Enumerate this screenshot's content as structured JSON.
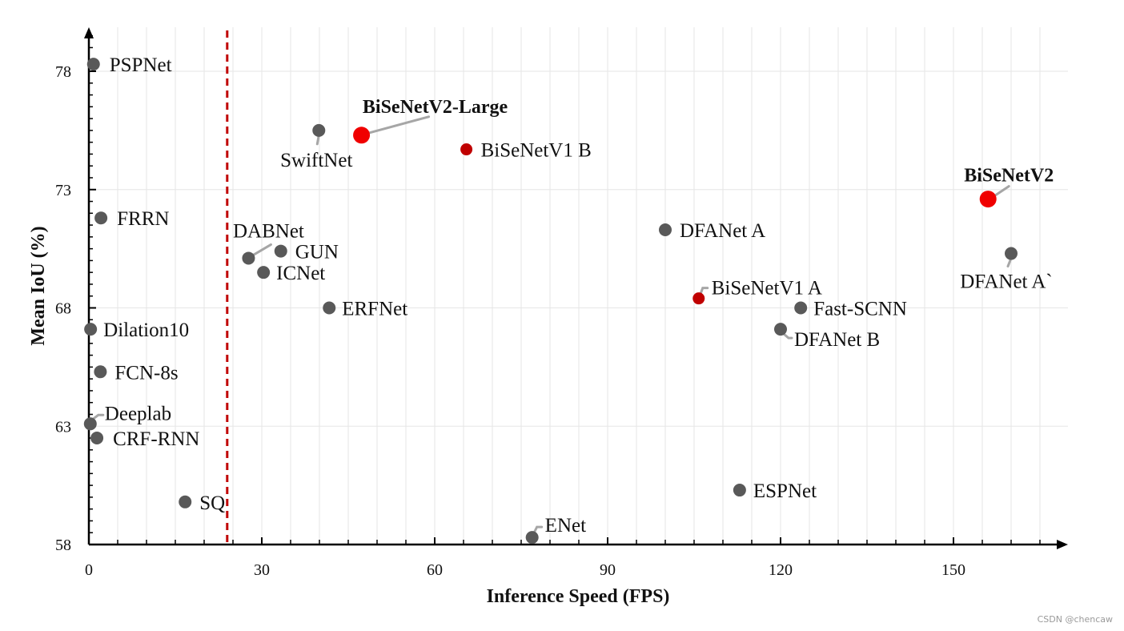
{
  "chart_data": {
    "type": "scatter",
    "title": "",
    "xlabel": "Inference Speed (FPS)",
    "ylabel": "Mean IoU (%)",
    "xlim": [
      0,
      170
    ],
    "ylim": [
      58,
      80
    ],
    "x_ticks": [
      0,
      30,
      60,
      90,
      120,
      150
    ],
    "y_ticks": [
      58,
      63,
      68,
      73,
      78
    ],
    "realtime_threshold_fps": 24,
    "grid": true,
    "colors": {
      "default_point": "#595959",
      "highlight_point": "#f00000",
      "bisenetv1_point": "#c00000",
      "threshold_line": "#c00000",
      "leader_line": "#a6a6a6",
      "grid": "#e6e6e6",
      "axis": "#000000"
    },
    "points": [
      {
        "name": "PSPNet",
        "x": 0.8,
        "y": 78.3,
        "category": "default",
        "bold": false
      },
      {
        "name": "FRRN",
        "x": 2.1,
        "y": 71.8,
        "category": "default",
        "bold": false
      },
      {
        "name": "Dilation10",
        "x": 0.3,
        "y": 67.1,
        "category": "default",
        "bold": false
      },
      {
        "name": "FCN-8s",
        "x": 2.0,
        "y": 65.3,
        "category": "default",
        "bold": false
      },
      {
        "name": "Deeplab",
        "x": 0.25,
        "y": 63.1,
        "category": "default",
        "bold": false
      },
      {
        "name": "CRF-RNN",
        "x": 1.4,
        "y": 62.5,
        "category": "default",
        "bold": false
      },
      {
        "name": "SQ",
        "x": 16.7,
        "y": 59.8,
        "category": "default",
        "bold": false
      },
      {
        "name": "SwiftNet",
        "x": 39.9,
        "y": 75.5,
        "category": "default",
        "bold": false
      },
      {
        "name": "BiSeNetV2-Large",
        "x": 47.3,
        "y": 75.3,
        "category": "highlight",
        "bold": true
      },
      {
        "name": "BiSeNetV1 B",
        "x": 65.5,
        "y": 74.7,
        "category": "bisenetv1",
        "bold": false
      },
      {
        "name": "DABNet",
        "x": 27.7,
        "y": 70.1,
        "category": "default",
        "bold": false
      },
      {
        "name": "GUN",
        "x": 33.3,
        "y": 70.4,
        "category": "default",
        "bold": false
      },
      {
        "name": "ICNet",
        "x": 30.3,
        "y": 69.5,
        "category": "default",
        "bold": false
      },
      {
        "name": "ERFNet",
        "x": 41.7,
        "y": 68.0,
        "category": "default",
        "bold": false
      },
      {
        "name": "ENet",
        "x": 76.9,
        "y": 58.3,
        "category": "default",
        "bold": false
      },
      {
        "name": "DFANet A",
        "x": 100.0,
        "y": 71.3,
        "category": "default",
        "bold": false
      },
      {
        "name": "BiSeNetV1 A",
        "x": 105.8,
        "y": 68.4,
        "category": "bisenetv1",
        "bold": false
      },
      {
        "name": "Fast-SCNN",
        "x": 123.5,
        "y": 68.0,
        "category": "default",
        "bold": false
      },
      {
        "name": "DFANet B",
        "x": 120.0,
        "y": 67.1,
        "category": "default",
        "bold": false
      },
      {
        "name": "ESPNet",
        "x": 112.9,
        "y": 60.3,
        "category": "default",
        "bold": false
      },
      {
        "name": "BiSeNetV2",
        "x": 156.0,
        "y": 72.6,
        "category": "highlight",
        "bold": true
      },
      {
        "name": "DFANet A`",
        "x": 160.0,
        "y": 70.3,
        "category": "default",
        "bold": false
      }
    ]
  },
  "watermark": "CSDN @chencaw"
}
